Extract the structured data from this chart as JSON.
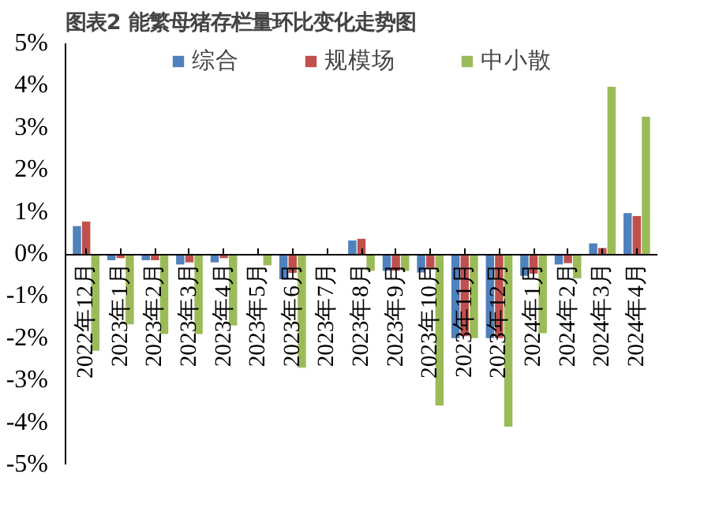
{
  "chart_data": {
    "type": "bar",
    "title": "图表2 能繁母猪存栏量环比变化走势图",
    "categories": [
      "2022年12月",
      "2023年1月",
      "2023年2月",
      "2023年3月",
      "2023年4月",
      "2023年5月",
      "2023年6月",
      "2023年7月",
      "2023年8月",
      "2023年9月",
      "2023年10月",
      "2023年11月",
      "2023年12月",
      "2024年1月",
      "2024年2月",
      "2024年3月",
      "2024年4月"
    ],
    "series": [
      {
        "name": "综合",
        "color": "#4f81bd",
        "values": [
          0.66,
          -0.15,
          -0.15,
          -0.25,
          -0.2,
          0,
          -0.6,
          0,
          0.32,
          -0.4,
          -0.44,
          -2.0,
          -2.0,
          -0.52,
          -0.25,
          0.25,
          0.97
        ]
      },
      {
        "name": "规模场",
        "color": "#c0504d",
        "values": [
          0.77,
          -0.1,
          -0.15,
          -0.2,
          -0.1,
          0,
          -0.45,
          0,
          0.36,
          -0.4,
          -0.33,
          -1.95,
          -2.0,
          -0.47,
          -0.22,
          0.14,
          0.9
        ]
      },
      {
        "name": "中小散",
        "color": "#9bbb59",
        "values": [
          -2.3,
          -1.67,
          -1.9,
          -1.9,
          -1.7,
          -0.27,
          -2.7,
          null,
          -0.4,
          -0.4,
          -3.6,
          -2.0,
          -4.1,
          -1.88,
          -0.58,
          3.97,
          3.26
        ]
      }
    ],
    "ylim": [
      -5,
      5
    ],
    "yticks": [
      {
        "value": -5,
        "label": "-5%"
      },
      {
        "value": -4,
        "label": "-4%"
      },
      {
        "value": -3,
        "label": "-3%"
      },
      {
        "value": -2,
        "label": "-2%"
      },
      {
        "value": -1,
        "label": "-1%"
      },
      {
        "value": 0,
        "label": "0%"
      },
      {
        "value": 1,
        "label": "1%"
      },
      {
        "value": 2,
        "label": "2%"
      },
      {
        "value": 3,
        "label": "3%"
      },
      {
        "value": 4,
        "label": "4%"
      },
      {
        "value": 5,
        "label": "5%"
      }
    ],
    "grid": false,
    "legend": "top"
  }
}
